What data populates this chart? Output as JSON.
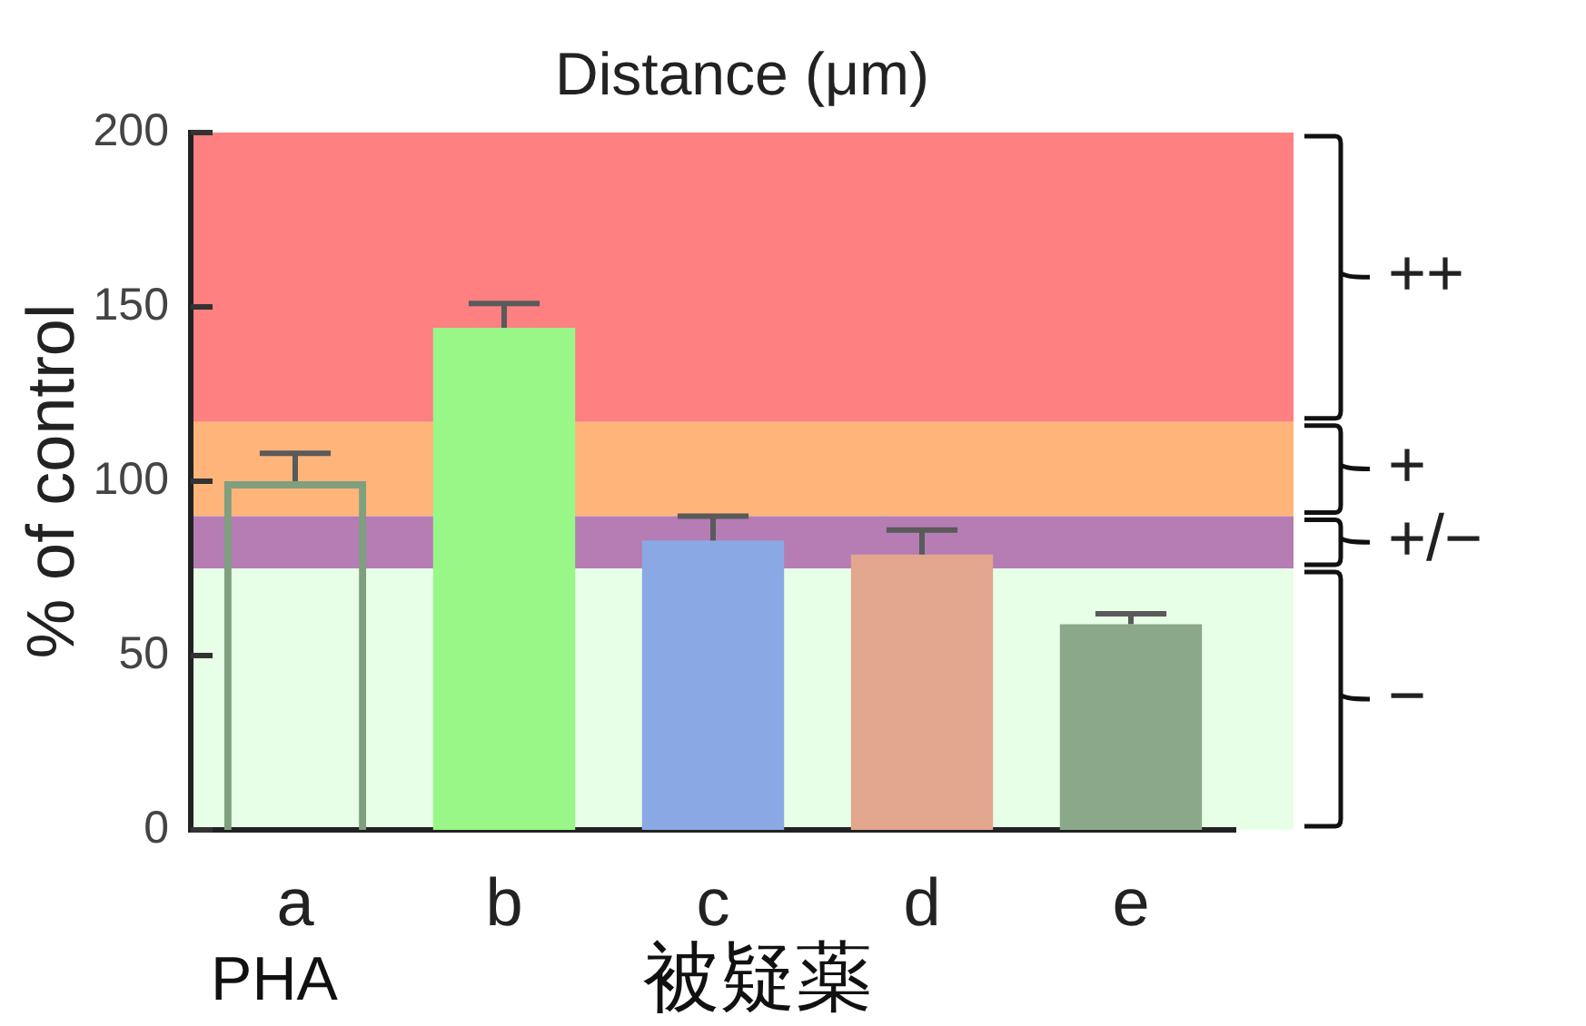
{
  "chart_data": {
    "type": "bar",
    "title": "Distance (μm)",
    "ylabel": "% of control",
    "categories": [
      "a",
      "b",
      "c",
      "d",
      "e"
    ],
    "values": [
      100,
      144,
      83,
      79,
      59
    ],
    "colors": [
      null,
      "#99f788",
      "#8aa8e4",
      "#e3a68e",
      "#8ba88a"
    ],
    "errors": [
      [
        100,
        108
      ],
      [
        144,
        151
      ],
      [
        83,
        90
      ],
      [
        79,
        86
      ],
      [
        59,
        62
      ]
    ],
    "ylim": [
      0,
      200
    ],
    "yticks": [
      0,
      50,
      100,
      150,
      200
    ],
    "bands": [
      {
        "axis": "y",
        "from": 117,
        "to": 200,
        "label": "++",
        "color": "#ff8080"
      },
      {
        "axis": "y",
        "from": 90,
        "to": 117,
        "label": "+",
        "color": "#ffb47a"
      },
      {
        "axis": "y",
        "from": 75,
        "to": 90,
        "label": "+/−",
        "color": "#b57db3"
      },
      {
        "axis": "y",
        "from": 0,
        "to": 75,
        "label": "−",
        "color": "#e6ffe6"
      }
    ],
    "annotations": [
      "PHA",
      "被疑薬"
    ]
  }
}
